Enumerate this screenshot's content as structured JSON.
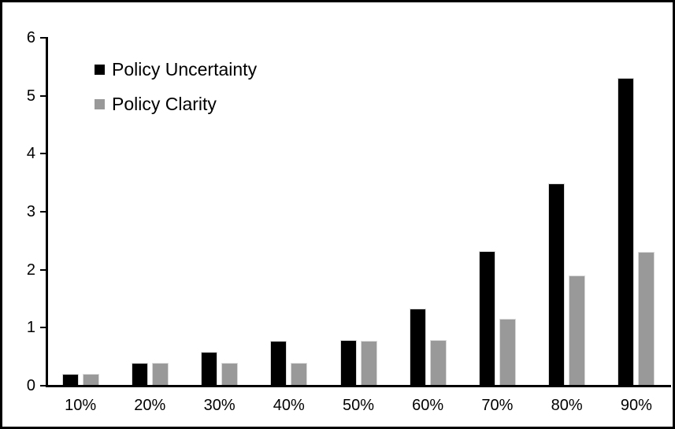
{
  "figure": {
    "background": "#ffffff",
    "frame_color": "#000000",
    "axis_color": "#000000"
  },
  "legend": {
    "items": [
      {
        "label": "Policy Uncertainty",
        "color": "#000000"
      },
      {
        "label": "Policy Clarity",
        "color": "#999999"
      }
    ]
  },
  "chart_data": {
    "type": "bar",
    "title": "",
    "xlabel": "",
    "ylabel": "",
    "categories": [
      "10%",
      "20%",
      "30%",
      "40%",
      "50%",
      "60%",
      "70%",
      "80%",
      "90%"
    ],
    "series": [
      {
        "name": "Policy Uncertainty",
        "color": "#000000",
        "values": [
          0.19,
          0.38,
          0.57,
          0.76,
          0.77,
          1.32,
          2.31,
          3.48,
          5.3
        ]
      },
      {
        "name": "Policy Clarity",
        "color": "#999999",
        "values": [
          0.19,
          0.38,
          0.38,
          0.38,
          0.76,
          0.77,
          1.14,
          1.89,
          2.3
        ]
      }
    ],
    "ylim": [
      0,
      6
    ],
    "yticks": [
      0,
      1,
      2,
      3,
      4,
      5,
      6
    ],
    "grid": false,
    "legend_position": "top-left-inside"
  }
}
